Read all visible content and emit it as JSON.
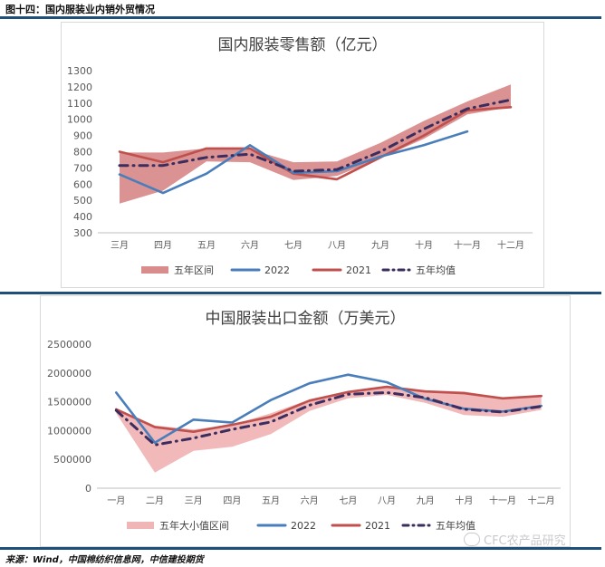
{
  "figure_title": "图十四：国内服装业内销外贸情况",
  "source": "来源：Wind，中国棉纺织信息网，中信建投期货",
  "watermark": "CFC农产品研究",
  "chart_data": [
    {
      "type": "line",
      "title": "国内服装零售额（亿元）",
      "categories": [
        "三月",
        "四月",
        "五月",
        "六月",
        "七月",
        "八月",
        "九月",
        "十月",
        "十一月",
        "十二月"
      ],
      "ylim": [
        300,
        1300
      ],
      "yticks": [
        300,
        400,
        500,
        600,
        700,
        800,
        900,
        1000,
        1100,
        1200,
        1300
      ],
      "grid": false,
      "legend_position": "bottom",
      "band": {
        "name": "五年区间",
        "color": "#d98c8c",
        "low": [
          480,
          560,
          740,
          735,
          625,
          650,
          760,
          880,
          1030,
          1075
        ],
        "high": [
          795,
          795,
          820,
          815,
          735,
          740,
          855,
          990,
          1110,
          1215
        ]
      },
      "series": [
        {
          "name": "2022",
          "color": "#4a7ebb",
          "style": "solid",
          "values": [
            660,
            545,
            665,
            840,
            670,
            680,
            770,
            840,
            925,
            null
          ]
        },
        {
          "name": "2021",
          "color": "#c0504d",
          "style": "solid",
          "values": [
            800,
            735,
            820,
            820,
            665,
            630,
            765,
            900,
            1055,
            1075
          ]
        },
        {
          "name": "五年均值",
          "color": "#3b2d5e",
          "style": "dashdot",
          "values": [
            715,
            715,
            765,
            785,
            680,
            690,
            800,
            940,
            1065,
            1120
          ]
        }
      ]
    },
    {
      "type": "line",
      "title": "中国服装出口金额（万美元）",
      "categories": [
        "一月",
        "二月",
        "三月",
        "四月",
        "五月",
        "六月",
        "七月",
        "八月",
        "九月",
        "十月",
        "十一月",
        "十二月"
      ],
      "ylim": [
        0,
        2500000
      ],
      "yticks": [
        0,
        500000,
        1000000,
        1500000,
        2000000,
        2500000
      ],
      "grid": false,
      "legend_position": "bottom",
      "band": {
        "name": "五年大小值区间",
        "color": "#f0b5b5",
        "low": [
          1300000,
          270000,
          650000,
          720000,
          940000,
          1340000,
          1560000,
          1620000,
          1480000,
          1270000,
          1240000,
          1360000
        ],
        "high": [
          1390000,
          1090000,
          1020000,
          1100000,
          1300000,
          1540000,
          1680000,
          1740000,
          1700000,
          1680000,
          1570000,
          1600000
        ]
      },
      "series": [
        {
          "name": "2022",
          "color": "#4a7ebb",
          "style": "solid",
          "values": [
            1660000,
            790000,
            1190000,
            1140000,
            1530000,
            1820000,
            1970000,
            1840000,
            1550000,
            1380000,
            1330000,
            1430000
          ]
        },
        {
          "name": "2021",
          "color": "#c0504d",
          "style": "solid",
          "values": [
            1370000,
            1060000,
            980000,
            1100000,
            1240000,
            1520000,
            1670000,
            1760000,
            1680000,
            1650000,
            1560000,
            1600000
          ]
        },
        {
          "name": "五年均值",
          "color": "#3b2d5e",
          "style": "dashdot",
          "values": [
            1350000,
            750000,
            870000,
            1020000,
            1150000,
            1440000,
            1630000,
            1660000,
            1570000,
            1370000,
            1320000,
            1420000
          ]
        }
      ]
    }
  ]
}
